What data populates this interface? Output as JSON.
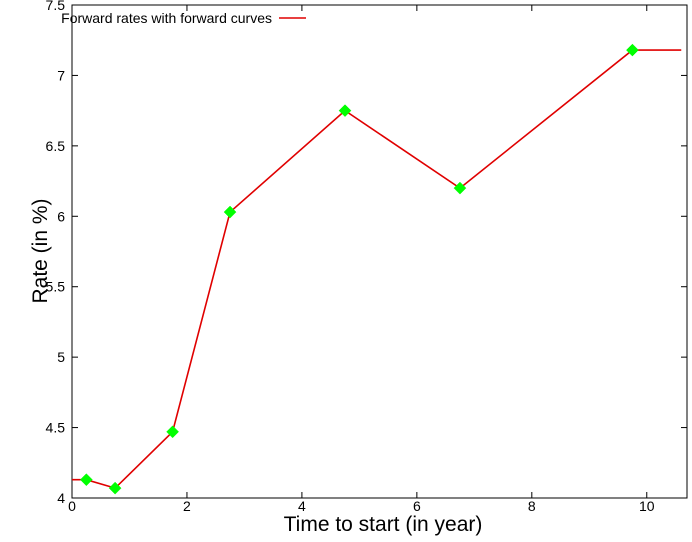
{
  "chart_data": {
    "type": "line",
    "title": "",
    "xlabel": "Time to start (in year)",
    "ylabel": "Rate (in %)",
    "xlim": [
      0,
      10.7
    ],
    "ylim": [
      4,
      7.5
    ],
    "xticks": [
      0,
      2,
      4,
      6,
      8,
      10
    ],
    "yticks": [
      4,
      4.5,
      5,
      5.5,
      6,
      6.5,
      7,
      7.5
    ],
    "xtick_labels": [
      "0",
      "2",
      "4",
      "6",
      "8",
      "10"
    ],
    "ytick_labels": [
      "4",
      "4.5",
      "5",
      "5.5",
      "6",
      "6.5",
      "7",
      "7.5"
    ],
    "grid": false,
    "legend_position": "top-left",
    "series": [
      {
        "name": "Forward rates with forward curves",
        "color": "#e00000",
        "marker_color": "#00ff00",
        "marker": "diamond",
        "x": [
          0,
          0.25,
          0.75,
          1.75,
          2.75,
          4.75,
          6.75,
          9.75,
          10.6
        ],
        "y": [
          4.13,
          4.13,
          4.07,
          4.47,
          6.03,
          6.75,
          6.2,
          7.18,
          7.18
        ],
        "markers_x": [
          0.25,
          0.75,
          1.75,
          2.75,
          4.75,
          6.75,
          9.75
        ],
        "markers_y": [
          4.13,
          4.07,
          4.47,
          6.03,
          6.75,
          6.2,
          7.18
        ]
      }
    ]
  }
}
